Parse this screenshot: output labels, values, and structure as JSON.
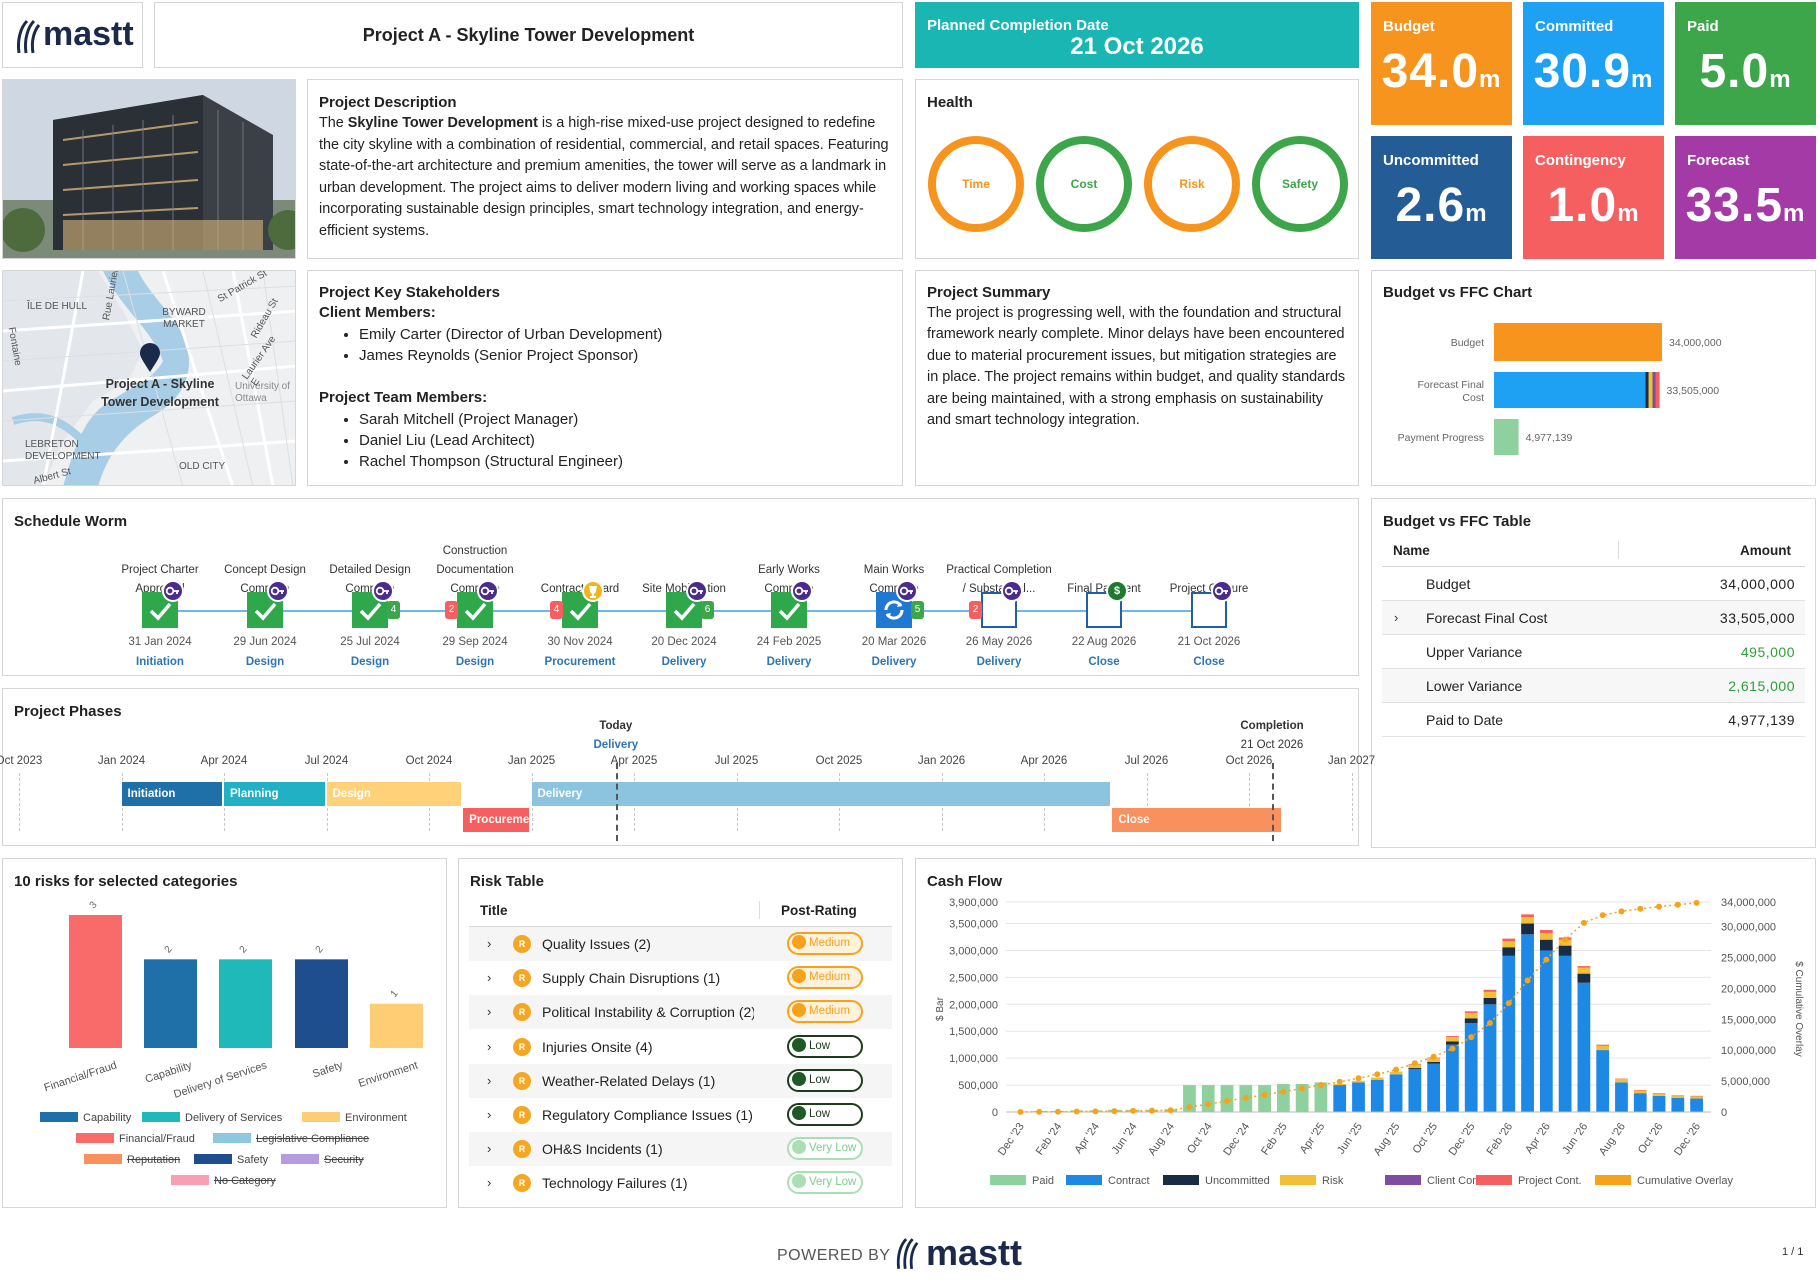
{
  "header": {
    "brand": "mastt",
    "project_title": "Project A - Skyline Tower Development",
    "planned_label": "Planned Completion Date",
    "planned_date": "21 Oct 2026"
  },
  "tiles": [
    {
      "label": "Budget",
      "value": "34.0",
      "unit": "m",
      "color": "#f7941d"
    },
    {
      "label": "Committed",
      "value": "30.9",
      "unit": "m",
      "color": "#1ea1f2"
    },
    {
      "label": "Paid",
      "value": "5.0",
      "unit": "m",
      "color": "#3ea64a"
    },
    {
      "label": "Uncommitted",
      "value": "2.6",
      "unit": "m",
      "color": "#245d96"
    },
    {
      "label": "Contingency",
      "value": "1.0",
      "unit": "m",
      "color": "#f55f5f"
    },
    {
      "label": "Forecast",
      "value": "33.5",
      "unit": "m",
      "color": "#a43aa6"
    }
  ],
  "description": {
    "title": "Project Description",
    "intro": "The ",
    "bold": "Skyline Tower Development",
    "body": " is a high-rise mixed-use project designed to redefine the city skyline with a combination of residential, commercial, and retail spaces. Featuring state-of-the-art architecture and premium amenities, the tower will serve as a landmark in urban development. The project aims to deliver modern living and working spaces while incorporating sustainable design principles, smart technology integration, and energy-efficient systems."
  },
  "health": {
    "title": "Health",
    "items": [
      {
        "label": "Time",
        "color": "#f7941d"
      },
      {
        "label": "Cost",
        "color": "#3ea64a"
      },
      {
        "label": "Risk",
        "color": "#f7941d"
      },
      {
        "label": "Safety",
        "color": "#3ea64a"
      }
    ]
  },
  "map": {
    "pin_label_1": "Project A - Skyline",
    "pin_label_2": "Tower Development",
    "places": [
      "ÎLE DE HULL",
      "BYWARD MARKET",
      "LEBRETON DEVELOPMENT",
      "OLD CITY",
      "University of Ottawa",
      "Rideau St",
      "St Patrick St",
      "Laurier Ave E",
      "Albert St",
      "Rue Laurier",
      "Fontaine"
    ]
  },
  "stakeholders": {
    "title": "Project Key Stakeholders",
    "client_heading": "Client Members:",
    "client": [
      "Emily Carter (Director of Urban Development)",
      "James Reynolds (Senior Project Sponsor)"
    ],
    "team_heading": "Project Team Members:",
    "team": [
      "Sarah Mitchell (Project Manager)",
      "Daniel Liu (Lead Architect)",
      "Rachel Thompson (Structural Engineer)"
    ]
  },
  "summary": {
    "title": "Project Summary",
    "text": "The project is progressing well, with the foundation and structural framework nearly complete. Minor delays have been encountered due to material procurement issues, but mitigation strategies are in place. The project remains within budget, and quality standards are being maintained, with a strong emphasis on sustainability and smart technology integration."
  },
  "bvf_chart": {
    "title": "Budget vs FFC Chart",
    "chart_data": {
      "type": "bar",
      "orientation": "horizontal",
      "categories": [
        "Budget",
        "Forecast Final Cost",
        "Payment Progress"
      ],
      "values": [
        34000000,
        33505000,
        4977139
      ],
      "value_labels": [
        "34,000,000",
        "33,505,000",
        "4,977,139"
      ],
      "colors": [
        "#f7941d",
        "#1ea1f2",
        "#8fd19e"
      ]
    }
  },
  "bvf_table": {
    "title": "Budget vs FFC Table",
    "col_name": "Name",
    "col_amount": "Amount",
    "rows": [
      {
        "name": "Budget",
        "amount": "34,000,000",
        "green": false,
        "expand": false
      },
      {
        "name": "Forecast Final Cost",
        "amount": "33,505,000",
        "green": false,
        "expand": true
      },
      {
        "name": "Upper Variance",
        "amount": "495,000",
        "green": true,
        "expand": false
      },
      {
        "name": "Lower Variance",
        "amount": "2,615,000",
        "green": true,
        "expand": false
      },
      {
        "name": "Paid to Date",
        "amount": "4,977,139",
        "green": false,
        "expand": false
      }
    ]
  },
  "worm": {
    "title": "Schedule Worm",
    "milestones": [
      {
        "label": "Project Charter Approved",
        "date": "31 Jan 2024",
        "phase": "Initiation",
        "state": "done",
        "marker": "key",
        "left_badge": "",
        "right_badge": ""
      },
      {
        "label": "Concept Design Complete",
        "date": "29 Jun 2024",
        "phase": "Design",
        "state": "done",
        "marker": "key",
        "left_badge": "",
        "right_badge": ""
      },
      {
        "label": "Detailed Design Complete",
        "date": "25 Jul 2024",
        "phase": "Design",
        "state": "done",
        "marker": "key",
        "left_badge": "",
        "right_badge": "4"
      },
      {
        "label": "Construction Documentation Complete",
        "date": "29 Sep 2024",
        "phase": "Design",
        "state": "done",
        "marker": "key",
        "left_badge": "2",
        "right_badge": ""
      },
      {
        "label": "Contract Award",
        "date": "30 Nov 2024",
        "phase": "Procurement",
        "state": "done",
        "marker": "trophy",
        "left_badge": "4",
        "right_badge": ""
      },
      {
        "label": "Site Mobilization",
        "date": "20 Dec 2024",
        "phase": "Delivery",
        "state": "done",
        "marker": "key",
        "left_badge": "",
        "right_badge": "6"
      },
      {
        "label": "Early Works Complete",
        "date": "24 Feb 2025",
        "phase": "Delivery",
        "state": "done",
        "marker": "key",
        "left_badge": "",
        "right_badge": ""
      },
      {
        "label": "Main Works Complete",
        "date": "20 Mar 2026",
        "phase": "Delivery",
        "state": "progress",
        "marker": "key",
        "left_badge": "",
        "right_badge": "5"
      },
      {
        "label": "Practical Completion / Substantial...",
        "date": "26 May 2026",
        "phase": "Delivery",
        "state": "todo",
        "marker": "key",
        "left_badge": "2",
        "right_badge": ""
      },
      {
        "label": "Final Payment",
        "date": "22 Aug 2026",
        "phase": "Close",
        "state": "todo",
        "marker": "dollar",
        "left_badge": "",
        "right_badge": ""
      },
      {
        "label": "Project Closure",
        "date": "21 Oct 2026",
        "phase": "Close",
        "state": "todo",
        "marker": "key",
        "left_badge": "",
        "right_badge": ""
      }
    ]
  },
  "phases": {
    "title": "Project Phases",
    "today_label": "Today",
    "today_sub": "Delivery",
    "completion_label": "Completion",
    "completion_date": "21 Oct 2026",
    "ticks": [
      "Oct 2023",
      "Jan 2024",
      "Apr 2024",
      "Jul 2024",
      "Oct 2024",
      "Jan 2025",
      "Apr 2025",
      "Jul 2025",
      "Oct 2025",
      "Jan 2026",
      "Apr 2026",
      "Jul 2026",
      "Oct 2026",
      "Jan 2027"
    ],
    "bars": [
      {
        "name": "Initiation",
        "start": "2024-01",
        "end": "2024-04",
        "row": 0,
        "color": "#1f6fa8"
      },
      {
        "name": "Planning",
        "start": "2024-04",
        "end": "2024-07",
        "row": 0,
        "color": "#22b0c4"
      },
      {
        "name": "Design",
        "start": "2024-07",
        "end": "2024-11",
        "row": 0,
        "color": "#ffd27a"
      },
      {
        "name": "Procureme",
        "start": "2024-11",
        "end": "2025-01",
        "row": 1,
        "color": "#f55f5f"
      },
      {
        "name": "Delivery",
        "start": "2025-01",
        "end": "2026-06",
        "row": 0,
        "color": "#8cc3de"
      },
      {
        "name": "Close",
        "start": "2026-06",
        "end": "2026-11",
        "row": 1,
        "color": "#f9915f"
      }
    ]
  },
  "risks_chart": {
    "title": "10 risks for selected categories",
    "chart_data": {
      "type": "bar",
      "categories": [
        "Financial/Fraud",
        "Capability",
        "Delivery of Services",
        "Safety",
        "Environment"
      ],
      "values": [
        3,
        2,
        2,
        2,
        1
      ],
      "colors": [
        "#f96b6b",
        "#1f6fa8",
        "#1fb9b9",
        "#1f4e8f",
        "#ffcd73"
      ]
    },
    "legend": [
      {
        "label": "Capability",
        "color": "#1f6fa8",
        "struck": false
      },
      {
        "label": "Delivery of Services",
        "color": "#1fb9b9",
        "struck": false
      },
      {
        "label": "Environment",
        "color": "#ffcd73",
        "struck": false
      },
      {
        "label": "Financial/Fraud",
        "color": "#f96b6b",
        "struck": false
      },
      {
        "label": "Legislative Compliance",
        "color": "#8fc7df",
        "struck": true
      },
      {
        "label": "Reputation",
        "color": "#f9915f",
        "struck": true
      },
      {
        "label": "Safety",
        "color": "#1f4e8f",
        "struck": false
      },
      {
        "label": "Security",
        "color": "#b59be0",
        "struck": true
      },
      {
        "label": "No Category",
        "color": "#f7a0b4",
        "struck": true
      }
    ]
  },
  "risk_table": {
    "title": "Risk Table",
    "col_title": "Title",
    "col_rating": "Post-Rating",
    "rows": [
      {
        "title": "Quality Issues  (2)",
        "rating": "Medium"
      },
      {
        "title": "Supply Chain Disruptions  (1)",
        "rating": "Medium"
      },
      {
        "title": "Political Instability & Corruption  (2)",
        "rating": "Medium"
      },
      {
        "title": "Injuries Onsite  (4)",
        "rating": "Low"
      },
      {
        "title": "Weather-Related Delays  (1)",
        "rating": "Low"
      },
      {
        "title": "Regulatory Compliance Issues  (1)",
        "rating": "Low"
      },
      {
        "title": "OH&S Incidents  (1)",
        "rating": "Very Low"
      },
      {
        "title": "Technology Failures  (1)",
        "rating": "Very Low"
      }
    ]
  },
  "cashflow": {
    "title": "Cash Flow",
    "chart_data": {
      "type": "bar",
      "stacked": true,
      "ylabel": "$ Bar",
      "y2label": "$ Cumulative Overlay",
      "ylim": [
        0,
        3900000
      ],
      "y2lim": [
        0,
        34000000
      ],
      "yticks": [
        "3,900,000",
        "3,500,000",
        "3,000,000",
        "2,500,000",
        "2,000,000",
        "1,500,000",
        "1,000,000",
        "500,000",
        "0"
      ],
      "y2ticks": [
        "34,000,000",
        "30,000,000",
        "25,000,000",
        "20,000,000",
        "15,000,000",
        "10,000,000",
        "5,000,000",
        "0"
      ],
      "xticks": [
        "Dec '23",
        "Feb '24",
        "Apr '24",
        "Jun '24",
        "Aug '24",
        "Oct '24",
        "Dec '24",
        "Feb '25",
        "Apr '25",
        "Jun '25",
        "Aug '25",
        "Oct '25",
        "Dec '25",
        "Feb '26",
        "Apr '26",
        "Jun '26",
        "Aug '26",
        "Oct '26",
        "Dec '26"
      ],
      "series": [
        {
          "name": "Paid",
          "color": "#8fd19e",
          "values": [
            10000,
            20000,
            20000,
            30000,
            30000,
            40000,
            40000,
            40000,
            50000,
            500000,
            500000,
            500000,
            500000,
            500000,
            520000,
            520000,
            550000,
            0,
            0,
            0,
            0,
            0,
            0,
            0,
            0,
            0,
            0,
            0,
            0,
            0,
            0,
            0,
            0,
            0,
            0,
            0,
            0
          ]
        },
        {
          "name": "Contract",
          "color": "#1e88e5",
          "values": [
            0,
            0,
            0,
            0,
            0,
            0,
            0,
            0,
            0,
            0,
            0,
            0,
            0,
            0,
            0,
            0,
            0,
            500000,
            550000,
            600000,
            700000,
            800000,
            900000,
            1250000,
            1650000,
            2000000,
            2900000,
            3300000,
            3000000,
            2900000,
            2400000,
            1150000,
            550000,
            350000,
            300000,
            260000,
            250000
          ]
        },
        {
          "name": "Uncommitted",
          "color": "#1a2b45",
          "values": [
            0,
            0,
            0,
            0,
            0,
            0,
            0,
            0,
            0,
            0,
            0,
            0,
            0,
            0,
            0,
            0,
            0,
            0,
            0,
            0,
            0,
            20000,
            30000,
            60000,
            90000,
            120000,
            160000,
            200000,
            200000,
            190000,
            170000,
            0,
            0,
            0,
            0,
            0,
            0
          ]
        },
        {
          "name": "Risk",
          "color": "#f2c037",
          "values": [
            0,
            0,
            0,
            0,
            0,
            0,
            0,
            0,
            0,
            0,
            0,
            0,
            0,
            0,
            0,
            0,
            0,
            20000,
            30000,
            40000,
            50000,
            60000,
            70000,
            80000,
            100000,
            110000,
            110000,
            120000,
            120000,
            110000,
            110000,
            80000,
            60000,
            50000,
            40000,
            40000,
            40000
          ]
        },
        {
          "name": "Client Cont.",
          "color": "#7e4ca0",
          "values": [
            0,
            0,
            0,
            0,
            0,
            0,
            0,
            0,
            0,
            0,
            0,
            0,
            0,
            0,
            0,
            0,
            0,
            0,
            0,
            0,
            0,
            0,
            0,
            0,
            0,
            0,
            0,
            0,
            0,
            0,
            0,
            0,
            0,
            0,
            0,
            0,
            0
          ]
        },
        {
          "name": "Project Cont.",
          "color": "#f55f5f",
          "values": [
            0,
            0,
            0,
            0,
            0,
            0,
            0,
            0,
            0,
            0,
            0,
            0,
            0,
            0,
            0,
            0,
            0,
            0,
            0,
            0,
            0,
            10000,
            10000,
            20000,
            30000,
            40000,
            50000,
            50000,
            60000,
            40000,
            30000,
            20000,
            10000,
            10000,
            10000,
            10000,
            10000
          ]
        },
        {
          "name": "Cumulative Overlay",
          "color": "#f7a21b",
          "line": true,
          "values": [
            10000,
            30000,
            50000,
            80000,
            110000,
            150000,
            190000,
            230000,
            280000,
            780000,
            1280000,
            1780000,
            2280000,
            2780000,
            3300000,
            3820000,
            4370000,
            4890000,
            5470000,
            6110000,
            6860000,
            7890000,
            8950000,
            10260000,
            12130000,
            14400000,
            17620000,
            21290000,
            24670000,
            27910000,
            30620000,
            31870000,
            32490000,
            32900000,
            33250000,
            33560000,
            33860000
          ]
        }
      ]
    }
  },
  "footer": {
    "powered": "POWERED BY",
    "brand": "mastt",
    "page": "1 / 1"
  }
}
